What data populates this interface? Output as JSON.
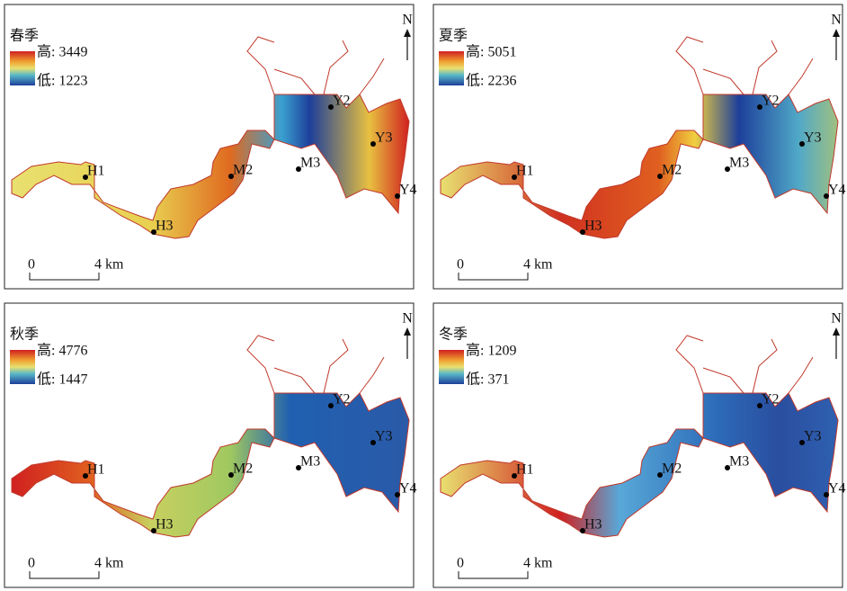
{
  "panels": [
    {
      "season": "春季",
      "high": "高: 3449",
      "low": "低: 1223",
      "north": "N",
      "stations": [
        "H1",
        "H3",
        "M2",
        "M3",
        "Y2",
        "Y3",
        "Y4"
      ],
      "scale": [
        "0",
        "4 km"
      ]
    },
    {
      "season": "夏季",
      "high": "高: 5051",
      "low": "低: 2236",
      "north": "N",
      "stations": [
        "H1",
        "H3",
        "M2",
        "M3",
        "Y2",
        "Y3",
        "Y4"
      ],
      "scale": [
        "0",
        "4 km"
      ]
    },
    {
      "season": "秋季",
      "high": "高: 4776",
      "low": "低: 1447",
      "north": "N",
      "stations": [
        "H1",
        "H3",
        "M2",
        "M3",
        "Y2",
        "Y3",
        "Y4"
      ],
      "scale": [
        "0",
        "4 km"
      ]
    },
    {
      "season": "冬季",
      "high": "高: 1209",
      "low": "低: 371",
      "north": "N",
      "stations": [
        "H1",
        "H3",
        "M2",
        "M3",
        "Y2",
        "Y3",
        "Y4"
      ],
      "scale": [
        "0",
        "4 km"
      ]
    }
  ]
}
